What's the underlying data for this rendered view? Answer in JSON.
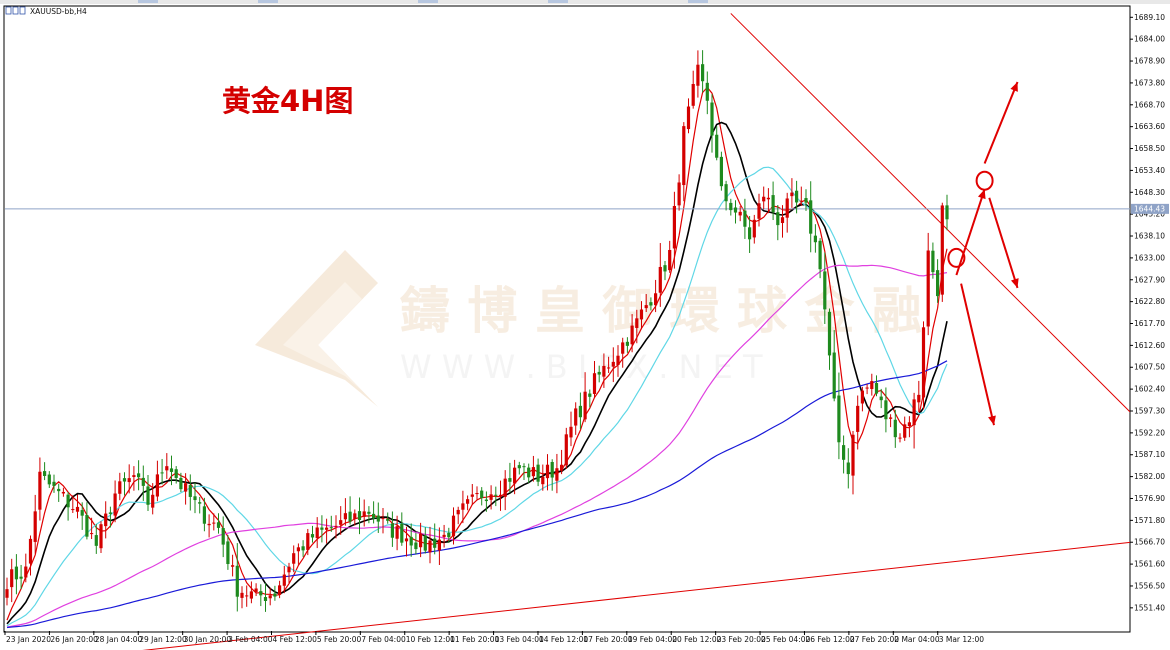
{
  "window": {
    "symbol_title": "XAUUSD-bb,H4"
  },
  "annotation": {
    "title": "黄金4H图"
  },
  "watermark": {
    "line1": "鑄 博 皇 御 環 球 金 融",
    "line2": "W W W . B I F X . N E T"
  },
  "colors": {
    "bull": "#d40000",
    "bear": "#1e8a1e",
    "ma_red": "#e00000",
    "ma_black": "#000000",
    "ma_cyan": "#5fd7e6",
    "ma_magenta": "#e040e0",
    "ma_blue": "#1a1ad8",
    "trend": "#e00000",
    "arrow": "#e00000",
    "price_line": "#8fa3c7",
    "axis": "#000000"
  },
  "chart_data": {
    "type": "candlestick",
    "symbol": "XAUUSD-bb",
    "timeframe": "H4",
    "ylim": [
      1546.0,
      1691.5
    ],
    "y_ticks": [
      "1689.10",
      "1684.00",
      "1678.90",
      "1673.80",
      "1668.70",
      "1663.60",
      "1658.50",
      "1653.40",
      "1648.30",
      "1643.20",
      "1638.10",
      "1633.00",
      "1627.90",
      "1622.80",
      "1617.70",
      "1612.60",
      "1607.50",
      "1602.40",
      "1597.30",
      "1592.20",
      "1587.10",
      "1582.00",
      "1576.90",
      "1571.80",
      "1566.70",
      "1561.60",
      "1556.50",
      "1551.40"
    ],
    "x_ticks": [
      "23 Jan 2020",
      "26 Jan 20:00",
      "28 Jan 04:00",
      "29 Jan 12:00",
      "30 Jan 20:00",
      "3 Feb 04:00",
      "4 Feb 12:00",
      "5 Feb 20:00",
      "7 Feb 04:00",
      "10 Feb 12:00",
      "11 Feb 20:00",
      "13 Feb 04:00",
      "14 Feb 12:00",
      "17 Feb 20:00",
      "19 Feb 04:00",
      "20 Feb 12:00",
      "23 Feb 20:00",
      "25 Feb 04:00",
      "26 Feb 12:00",
      "27 Feb 20:00",
      "2 Mar 04:00",
      "3 Mar 12:00"
    ],
    "current_price": "1644.43",
    "close_anchors": [
      [
        0,
        1558
      ],
      [
        4,
        1560
      ],
      [
        7,
        1582
      ],
      [
        11,
        1578
      ],
      [
        15,
        1574
      ],
      [
        19,
        1566
      ],
      [
        23,
        1578
      ],
      [
        27,
        1582
      ],
      [
        30,
        1576
      ],
      [
        34,
        1586
      ],
      [
        37,
        1580
      ],
      [
        41,
        1574
      ],
      [
        45,
        1570
      ],
      [
        49,
        1556
      ],
      [
        53,
        1554
      ],
      [
        57,
        1555
      ],
      [
        61,
        1564
      ],
      [
        65,
        1568
      ],
      [
        69,
        1570
      ],
      [
        73,
        1572
      ],
      [
        77,
        1574
      ],
      [
        81,
        1570
      ],
      [
        85,
        1568
      ],
      [
        89,
        1566
      ],
      [
        93,
        1568
      ],
      [
        97,
        1574
      ],
      [
        101,
        1578
      ],
      [
        105,
        1580
      ],
      [
        109,
        1584
      ],
      [
        113,
        1582
      ],
      [
        117,
        1584
      ],
      [
        121,
        1596
      ],
      [
        125,
        1604
      ],
      [
        129,
        1610
      ],
      [
        133,
        1616
      ],
      [
        137,
        1624
      ],
      [
        141,
        1634
      ],
      [
        144,
        1662
      ],
      [
        147,
        1676
      ],
      [
        149,
        1670
      ],
      [
        152,
        1648
      ],
      [
        155,
        1644
      ],
      [
        158,
        1638
      ],
      [
        161,
        1648
      ],
      [
        164,
        1642
      ],
      [
        167,
        1646
      ],
      [
        170,
        1644
      ],
      [
        173,
        1632
      ],
      [
        175,
        1610
      ],
      [
        177,
        1588
      ],
      [
        179,
        1584
      ],
      [
        181,
        1600
      ],
      [
        184,
        1604
      ],
      [
        187,
        1596
      ],
      [
        190,
        1592
      ],
      [
        192,
        1596
      ],
      [
        194,
        1602
      ],
      [
        196,
        1634
      ],
      [
        198,
        1626
      ],
      [
        199,
        1644
      ],
      [
        200,
        1642
      ]
    ],
    "ma_series": [
      {
        "name": "",
        "color": "#e00000",
        "period": 5
      },
      {
        "name": "",
        "color": "#000000",
        "period": 10
      },
      {
        "name": "",
        "color": "#5fd7e6",
        "period": 20
      },
      {
        "name": "",
        "color": "#e040e0",
        "period": 60
      },
      {
        "name": "",
        "color": "#1a1ad8",
        "period": 120
      }
    ],
    "trendlines": [
      {
        "from": [
          0,
          1538
        ],
        "to": [
          250,
          1568
        ]
      },
      {
        "from": [
          154,
          1690
        ],
        "to": [
          250,
          1585
        ]
      }
    ],
    "markers": [
      {
        "type": "circle",
        "at": [
          202,
          1633
        ]
      },
      {
        "type": "circle",
        "at": [
          208,
          1651
        ]
      }
    ],
    "arrows": [
      {
        "from": [
          202,
          1629
        ],
        "to": [
          208,
          1649
        ]
      },
      {
        "from": [
          208,
          1655
        ],
        "to": [
          215,
          1674
        ]
      },
      {
        "from": [
          209,
          1647
        ],
        "to": [
          215,
          1626
        ]
      },
      {
        "from": [
          203,
          1627
        ],
        "to": [
          210,
          1594
        ]
      }
    ]
  }
}
